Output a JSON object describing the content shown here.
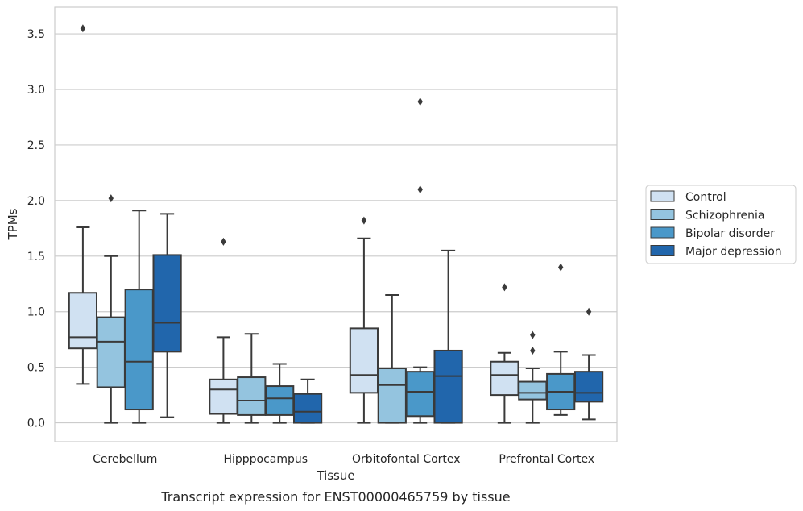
{
  "caption": "Transcript expression for ENST00000465759 by tissue",
  "chart_data": {
    "type": "boxplot",
    "xlabel": "Tissue",
    "ylabel": "TPMs",
    "ylim": [
      -0.17,
      3.74
    ],
    "yticks": [
      "0.0",
      "0.5",
      "1.0",
      "1.5",
      "2.0",
      "2.5",
      "3.0",
      "3.5"
    ],
    "grid": "horizontal",
    "legend_position": "right",
    "categories": [
      "Cerebellum",
      "Hipppocampus",
      "Orbitofontal Cortex",
      "Prefrontal Cortex"
    ],
    "series": [
      {
        "name": "Control",
        "color": "#d0e1f2",
        "boxes": [
          {
            "whisker_low": 0.35,
            "q1": 0.67,
            "median": 0.77,
            "q3": 1.17,
            "whisker_high": 1.76,
            "outliers": [
              3.55
            ]
          },
          {
            "whisker_low": 0.0,
            "q1": 0.08,
            "median": 0.3,
            "q3": 0.39,
            "whisker_high": 0.77,
            "outliers": [
              1.63
            ]
          },
          {
            "whisker_low": 0.0,
            "q1": 0.27,
            "median": 0.43,
            "q3": 0.85,
            "whisker_high": 1.66,
            "outliers": [
              1.82
            ]
          },
          {
            "whisker_low": 0.0,
            "q1": 0.25,
            "median": 0.43,
            "q3": 0.55,
            "whisker_high": 0.63,
            "outliers": [
              1.22
            ]
          }
        ]
      },
      {
        "name": "Schizophrenia",
        "color": "#94c4df",
        "boxes": [
          {
            "whisker_low": 0.0,
            "q1": 0.32,
            "median": 0.73,
            "q3": 0.95,
            "whisker_high": 1.5,
            "outliers": [
              2.02
            ]
          },
          {
            "whisker_low": 0.0,
            "q1": 0.07,
            "median": 0.2,
            "q3": 0.41,
            "whisker_high": 0.8,
            "outliers": []
          },
          {
            "whisker_low": 0.0,
            "q1": 0.0,
            "median": 0.34,
            "q3": 0.49,
            "whisker_high": 1.15,
            "outliers": []
          },
          {
            "whisker_low": 0.0,
            "q1": 0.21,
            "median": 0.27,
            "q3": 0.37,
            "whisker_high": 0.49,
            "outliers": [
              0.65,
              0.79
            ]
          }
        ]
      },
      {
        "name": "Bipolar disorder",
        "color": "#4a98c9",
        "boxes": [
          {
            "whisker_low": 0.0,
            "q1": 0.12,
            "median": 0.55,
            "q3": 1.2,
            "whisker_high": 1.91,
            "outliers": []
          },
          {
            "whisker_low": 0.0,
            "q1": 0.07,
            "median": 0.22,
            "q3": 0.33,
            "whisker_high": 0.53,
            "outliers": []
          },
          {
            "whisker_low": 0.0,
            "q1": 0.06,
            "median": 0.28,
            "q3": 0.46,
            "whisker_high": 0.5,
            "outliers": [
              2.1,
              2.89
            ]
          },
          {
            "whisker_low": 0.07,
            "q1": 0.12,
            "median": 0.28,
            "q3": 0.44,
            "whisker_high": 0.64,
            "outliers": [
              1.4
            ]
          }
        ]
      },
      {
        "name": "Major depression",
        "color": "#2166ac",
        "boxes": [
          {
            "whisker_low": 0.05,
            "q1": 0.64,
            "median": 0.9,
            "q3": 1.51,
            "whisker_high": 1.88,
            "outliers": []
          },
          {
            "whisker_low": 0.0,
            "q1": 0.0,
            "median": 0.1,
            "q3": 0.26,
            "whisker_high": 0.39,
            "outliers": []
          },
          {
            "whisker_low": 0.0,
            "q1": 0.0,
            "median": 0.42,
            "q3": 0.65,
            "whisker_high": 1.55,
            "outliers": []
          },
          {
            "whisker_low": 0.03,
            "q1": 0.19,
            "median": 0.27,
            "q3": 0.46,
            "whisker_high": 0.61,
            "outliers": [
              1.0
            ]
          }
        ]
      }
    ]
  }
}
